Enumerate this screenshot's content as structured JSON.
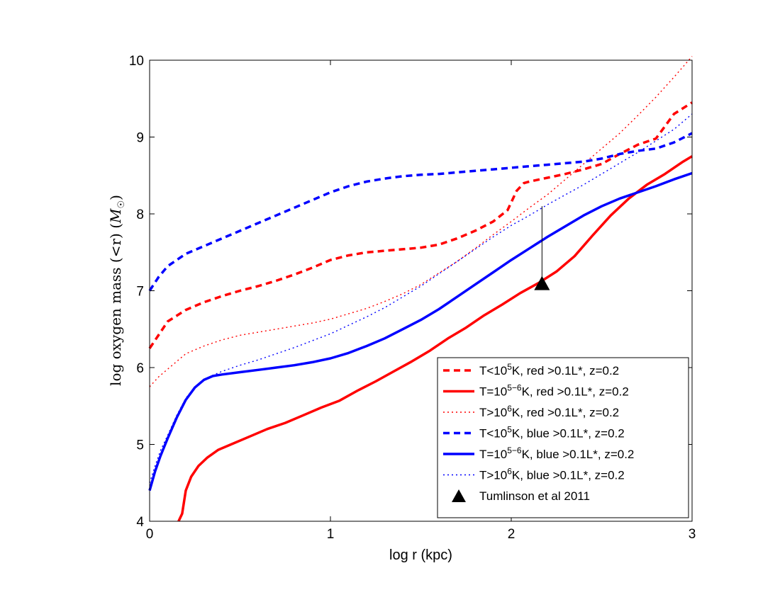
{
  "chart_data": {
    "type": "line",
    "title": "",
    "xlabel": "log r (kpc)",
    "ylabel": "log oxygen mass (<r) (M☉)",
    "xlim": [
      0,
      3
    ],
    "ylim": [
      4,
      10
    ],
    "grid": false,
    "legend_position": "bottom-right",
    "x_ticks": [
      0,
      1,
      2,
      3
    ],
    "y_ticks": [
      4,
      5,
      6,
      7,
      8,
      9,
      10
    ],
    "series": [
      {
        "name": "T<10^5K, red >0.1L*, z=0.2",
        "label_parts": {
          "pre": "T<10",
          "sup": "5",
          "post": "K, red >0.1L*, z=0.2"
        },
        "color": "#ff0000",
        "style": "dashed",
        "x": [
          0,
          0.1,
          0.2,
          0.3,
          0.4,
          0.5,
          0.6,
          0.7,
          0.8,
          0.9,
          1.0,
          1.1,
          1.2,
          1.3,
          1.4,
          1.5,
          1.6,
          1.7,
          1.8,
          1.9,
          1.98,
          2.03,
          2.07,
          2.1,
          2.2,
          2.3,
          2.4,
          2.5,
          2.6,
          2.7,
          2.8,
          2.9,
          3.0
        ],
        "y": [
          6.25,
          6.6,
          6.75,
          6.85,
          6.93,
          7.0,
          7.06,
          7.13,
          7.21,
          7.3,
          7.4,
          7.46,
          7.5,
          7.52,
          7.54,
          7.56,
          7.6,
          7.68,
          7.78,
          7.9,
          8.05,
          8.3,
          8.4,
          8.42,
          8.47,
          8.52,
          8.58,
          8.65,
          8.78,
          8.9,
          8.98,
          9.3,
          9.45
        ]
      },
      {
        "name": "T=10^5-6K, red >0.1L*, z=0.2",
        "label_parts": {
          "pre": "T=10",
          "sup": "5−6",
          "post": "K, red >0.1L*, z=0.2"
        },
        "color": "#ff0000",
        "style": "solid",
        "x": [
          0.16,
          0.18,
          0.2,
          0.23,
          0.27,
          0.32,
          0.38,
          0.45,
          0.55,
          0.65,
          0.75,
          0.85,
          0.95,
          1.05,
          1.15,
          1.25,
          1.35,
          1.45,
          1.55,
          1.65,
          1.75,
          1.85,
          1.95,
          2.05,
          2.15,
          2.25,
          2.35,
          2.45,
          2.55,
          2.65,
          2.75,
          2.85,
          2.95,
          3.0
        ],
        "y": [
          4.0,
          4.1,
          4.4,
          4.58,
          4.72,
          4.83,
          4.93,
          5.0,
          5.1,
          5.2,
          5.28,
          5.38,
          5.48,
          5.57,
          5.7,
          5.82,
          5.95,
          6.08,
          6.22,
          6.38,
          6.52,
          6.68,
          6.82,
          6.97,
          7.1,
          7.25,
          7.45,
          7.72,
          7.98,
          8.2,
          8.38,
          8.52,
          8.68,
          8.75
        ]
      },
      {
        "name": "T>10^6K, red >0.1L*, z=0.2",
        "label_parts": {
          "pre": "T>10",
          "sup": "6",
          "post": "K, red >0.1L*, z=0.2"
        },
        "color": "#ff0000",
        "style": "dotted",
        "x": [
          0,
          0.05,
          0.1,
          0.15,
          0.2,
          0.3,
          0.4,
          0.5,
          0.6,
          0.7,
          0.8,
          0.9,
          1.0,
          1.1,
          1.2,
          1.3,
          1.4,
          1.5,
          1.6,
          1.7,
          1.8,
          1.9,
          2.0,
          2.1,
          2.2,
          2.3,
          2.4,
          2.5,
          2.6,
          2.7,
          2.8,
          2.9,
          3.0
        ],
        "y": [
          5.75,
          5.88,
          5.98,
          6.08,
          6.18,
          6.28,
          6.36,
          6.42,
          6.46,
          6.5,
          6.54,
          6.58,
          6.63,
          6.7,
          6.77,
          6.86,
          6.96,
          7.08,
          7.23,
          7.38,
          7.55,
          7.73,
          7.9,
          8.08,
          8.25,
          8.45,
          8.65,
          8.85,
          9.05,
          9.28,
          9.52,
          9.78,
          10.05
        ]
      },
      {
        "name": "T<10^5K, blue >0.1L*, z=0.2",
        "label_parts": {
          "pre": "T<10",
          "sup": "5",
          "post": "K, blue >0.1L*, z=0.2"
        },
        "color": "#0000ff",
        "style": "dashed",
        "x": [
          0,
          0.05,
          0.1,
          0.2,
          0.3,
          0.4,
          0.5,
          0.6,
          0.7,
          0.8,
          0.9,
          1.0,
          1.1,
          1.2,
          1.3,
          1.4,
          1.5,
          1.6,
          1.7,
          1.8,
          1.9,
          2.0,
          2.1,
          2.2,
          2.3,
          2.4,
          2.5,
          2.6,
          2.7,
          2.8,
          2.9,
          3.0
        ],
        "y": [
          7.0,
          7.18,
          7.32,
          7.48,
          7.58,
          7.68,
          7.78,
          7.88,
          7.98,
          8.08,
          8.18,
          8.28,
          8.36,
          8.42,
          8.46,
          8.49,
          8.51,
          8.52,
          8.54,
          8.56,
          8.58,
          8.6,
          8.62,
          8.64,
          8.66,
          8.68,
          8.72,
          8.78,
          8.82,
          8.85,
          8.93,
          9.05
        ]
      },
      {
        "name": "T=10^5-6K, blue >0.1L*, z=0.2",
        "label_parts": {
          "pre": "T=10",
          "sup": "5−6",
          "post": "K, blue >0.1L*, z=0.2"
        },
        "color": "#0000ff",
        "style": "solid",
        "x": [
          0,
          0.03,
          0.06,
          0.1,
          0.15,
          0.2,
          0.25,
          0.3,
          0.35,
          0.4,
          0.5,
          0.6,
          0.7,
          0.8,
          0.9,
          1.0,
          1.1,
          1.2,
          1.3,
          1.4,
          1.5,
          1.6,
          1.7,
          1.8,
          1.9,
          2.0,
          2.1,
          2.2,
          2.3,
          2.4,
          2.5,
          2.6,
          2.7,
          2.8,
          2.9,
          3.0
        ],
        "y": [
          4.4,
          4.65,
          4.85,
          5.08,
          5.35,
          5.58,
          5.74,
          5.84,
          5.89,
          5.91,
          5.94,
          5.97,
          6.0,
          6.03,
          6.07,
          6.12,
          6.19,
          6.28,
          6.38,
          6.5,
          6.62,
          6.76,
          6.92,
          7.08,
          7.24,
          7.4,
          7.55,
          7.7,
          7.84,
          7.98,
          8.1,
          8.2,
          8.28,
          8.36,
          8.45,
          8.53
        ]
      },
      {
        "name": "T>10^6K, blue >0.1L*, z=0.2",
        "label_parts": {
          "pre": "T>10",
          "sup": "6",
          "post": "K, blue >0.1L*, z=0.2"
        },
        "color": "#0000ff",
        "style": "dotted",
        "x": [
          0,
          0.03,
          0.06,
          0.1,
          0.15,
          0.2,
          0.25,
          0.3,
          0.35,
          0.4,
          0.5,
          0.6,
          0.7,
          0.8,
          0.9,
          1.0,
          1.1,
          1.2,
          1.3,
          1.4,
          1.5,
          1.6,
          1.7,
          1.8,
          1.9,
          2.0,
          2.1,
          2.2,
          2.3,
          2.4,
          2.5,
          2.6,
          2.7,
          2.8,
          2.9,
          3.0
        ],
        "y": [
          4.5,
          4.72,
          4.92,
          5.12,
          5.38,
          5.6,
          5.75,
          5.84,
          5.9,
          5.95,
          6.03,
          6.1,
          6.18,
          6.26,
          6.35,
          6.44,
          6.55,
          6.66,
          6.78,
          6.92,
          7.06,
          7.22,
          7.38,
          7.54,
          7.7,
          7.85,
          7.98,
          8.12,
          8.25,
          8.38,
          8.52,
          8.66,
          8.8,
          8.95,
          9.1,
          9.3
        ]
      }
    ],
    "observation": {
      "name": "Tumlinson et al 2011",
      "x": 2.17,
      "y": 7.1,
      "y_upper": 8.1,
      "color": "#000000",
      "marker": "triangle"
    }
  }
}
